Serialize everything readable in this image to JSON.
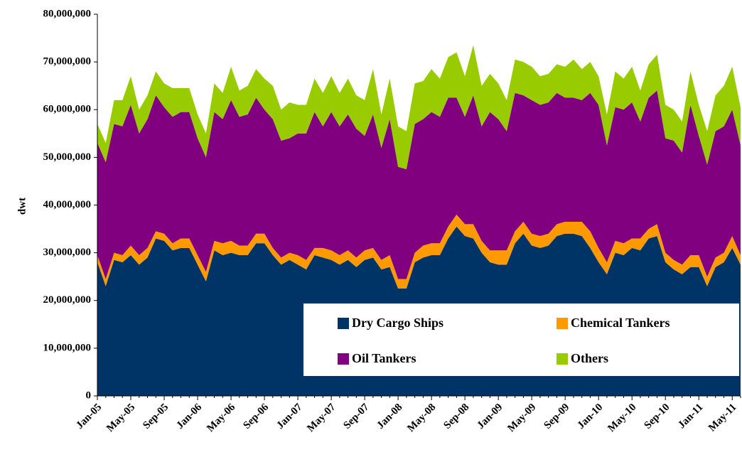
{
  "chart_data": {
    "type": "stacked_area",
    "y_label": "dwt",
    "categories": [
      "Jan-05",
      null,
      null,
      null,
      "May-05",
      null,
      null,
      null,
      "Sep-05",
      null,
      null,
      null,
      "Jan-06",
      null,
      null,
      null,
      "May-06",
      null,
      null,
      null,
      "Sep-06",
      null,
      null,
      null,
      "Jan-07",
      null,
      null,
      null,
      "May-07",
      null,
      null,
      null,
      "Sep-07",
      null,
      null,
      null,
      "Jan-08",
      null,
      null,
      null,
      "May-08",
      null,
      null,
      null,
      "Sep-08",
      null,
      null,
      null,
      "Jan-09",
      null,
      null,
      null,
      "May-09",
      null,
      null,
      null,
      "Sep-09",
      null,
      null,
      null,
      "Jan-10",
      null,
      null,
      null,
      "May-10",
      null,
      null,
      null,
      "Sep-10",
      null,
      null,
      null,
      "Jan-11",
      null,
      null,
      null,
      "May-11",
      null
    ],
    "series": [
      {
        "name": "Dry Cargo Ships",
        "color": "#003366",
        "values": [
          28000000,
          23000000,
          28500000,
          28000000,
          29500000,
          27500000,
          29000000,
          33000000,
          32500000,
          30500000,
          31000000,
          31000000,
          27500000,
          24000000,
          30500000,
          29500000,
          30000000,
          29500000,
          29500000,
          32000000,
          32000000,
          29500000,
          27500000,
          28500000,
          27500000,
          26500000,
          29500000,
          29000000,
          28500000,
          27500000,
          28500000,
          27000000,
          28500000,
          29000000,
          26500000,
          27000000,
          22500000,
          22500000,
          28000000,
          29000000,
          29500000,
          29500000,
          33000000,
          35500000,
          33500000,
          33000000,
          30000000,
          28000000,
          27500000,
          27500000,
          32000000,
          34000000,
          31500000,
          31000000,
          31500000,
          33500000,
          34000000,
          34000000,
          33500000,
          31000000,
          28000000,
          25500000,
          30000000,
          29500000,
          31000000,
          30500000,
          33000000,
          33500000,
          28000000,
          26500000,
          25500000,
          27000000,
          27000000,
          23000000,
          27000000,
          28000000,
          31000000,
          27500000
        ]
      },
      {
        "name": "Chemical Tankers",
        "color": "#ff9900",
        "values": [
          1500000,
          1500000,
          1500000,
          1500000,
          2000000,
          2000000,
          2000000,
          1500000,
          1500000,
          1500000,
          2000000,
          2000000,
          2000000,
          2000000,
          2000000,
          2500000,
          2500000,
          2000000,
          2000000,
          2000000,
          2000000,
          1500000,
          1500000,
          1500000,
          2000000,
          2000000,
          1500000,
          2000000,
          2000000,
          2000000,
          2000000,
          2000000,
          2000000,
          2000000,
          2000000,
          2500000,
          2000000,
          2000000,
          2000000,
          2500000,
          2500000,
          2500000,
          2500000,
          2500000,
          2500000,
          3000000,
          2500000,
          2500000,
          3000000,
          3000000,
          2500000,
          2500000,
          2500000,
          2500000,
          2500000,
          2500000,
          2500000,
          2500000,
          3000000,
          3500000,
          3000000,
          2500000,
          2500000,
          2500000,
          2000000,
          2500000,
          2000000,
          2500000,
          2000000,
          2000000,
          2000000,
          2500000,
          2500000,
          2000000,
          2000000,
          2000000,
          2500000,
          2000000
        ]
      },
      {
        "name": "Oil Tankers",
        "color": "#800080",
        "values": [
          23500000,
          24500000,
          27000000,
          27000000,
          29500000,
          25500000,
          27000000,
          28500000,
          26500000,
          26500000,
          26500000,
          26500000,
          24500000,
          24000000,
          27000000,
          26000000,
          29500000,
          27000000,
          27500000,
          28500000,
          26000000,
          27000000,
          24500000,
          24000000,
          25500000,
          26500000,
          28500000,
          25500000,
          29000000,
          27000000,
          28500000,
          27000000,
          24000000,
          28000000,
          23500000,
          28500000,
          23500000,
          23000000,
          27000000,
          26500000,
          27500000,
          26500000,
          27000000,
          24500000,
          22500000,
          27000000,
          24000000,
          29000000,
          27500000,
          25000000,
          29000000,
          26500000,
          28000000,
          27500000,
          27500000,
          27500000,
          26000000,
          26000000,
          25500000,
          29000000,
          30000000,
          24500000,
          28000000,
          28000000,
          28500000,
          24500000,
          27500000,
          28000000,
          24000000,
          25000000,
          23500000,
          31500000,
          25000000,
          23500000,
          26500000,
          26500000,
          26500000,
          23000000
        ]
      },
      {
        "name": "Others",
        "color": "#99cc00",
        "values": [
          4000000,
          4000000,
          5000000,
          5500000,
          6000000,
          5000000,
          5000000,
          5000000,
          5000000,
          6000000,
          5000000,
          5000000,
          5000000,
          5000000,
          6000000,
          5500000,
          7000000,
          5500000,
          6000000,
          6000000,
          6500000,
          7000000,
          6500000,
          7500000,
          6000000,
          6000000,
          7000000,
          7000000,
          7500000,
          7000000,
          7500000,
          7000000,
          7500000,
          9500000,
          7000000,
          8500000,
          8500000,
          8000000,
          8500000,
          8000000,
          9000000,
          8000000,
          8500000,
          9500000,
          8500000,
          10500000,
          8500000,
          8000000,
          7500000,
          6500000,
          7000000,
          7000000,
          7000000,
          6000000,
          6000000,
          6000000,
          6500000,
          8000000,
          6500000,
          6500000,
          6000000,
          6500000,
          7500000,
          6500000,
          7500000,
          6500000,
          7000000,
          7500000,
          7000000,
          6500000,
          6500000,
          7000000,
          6500000,
          7000000,
          7500000,
          8500000,
          9000000,
          8000000
        ]
      }
    ],
    "ylim": [
      0,
      80000000
    ],
    "yticks": [
      0,
      {
        "value": 10000000,
        "label": "10,000,000"
      },
      {
        "value": 20000000,
        "label": "20,000,000"
      },
      {
        "value": 30000000,
        "label": "30,000,000"
      },
      {
        "value": 40000000,
        "label": "40,000,000"
      },
      {
        "value": 50000000,
        "label": "50,000,000"
      },
      {
        "value": 60000000,
        "label": "60,000,000"
      },
      {
        "value": 70000000,
        "label": "70,000,000"
      },
      {
        "value": 80000000,
        "label": "80,000,000"
      }
    ],
    "legend": "lower right"
  }
}
